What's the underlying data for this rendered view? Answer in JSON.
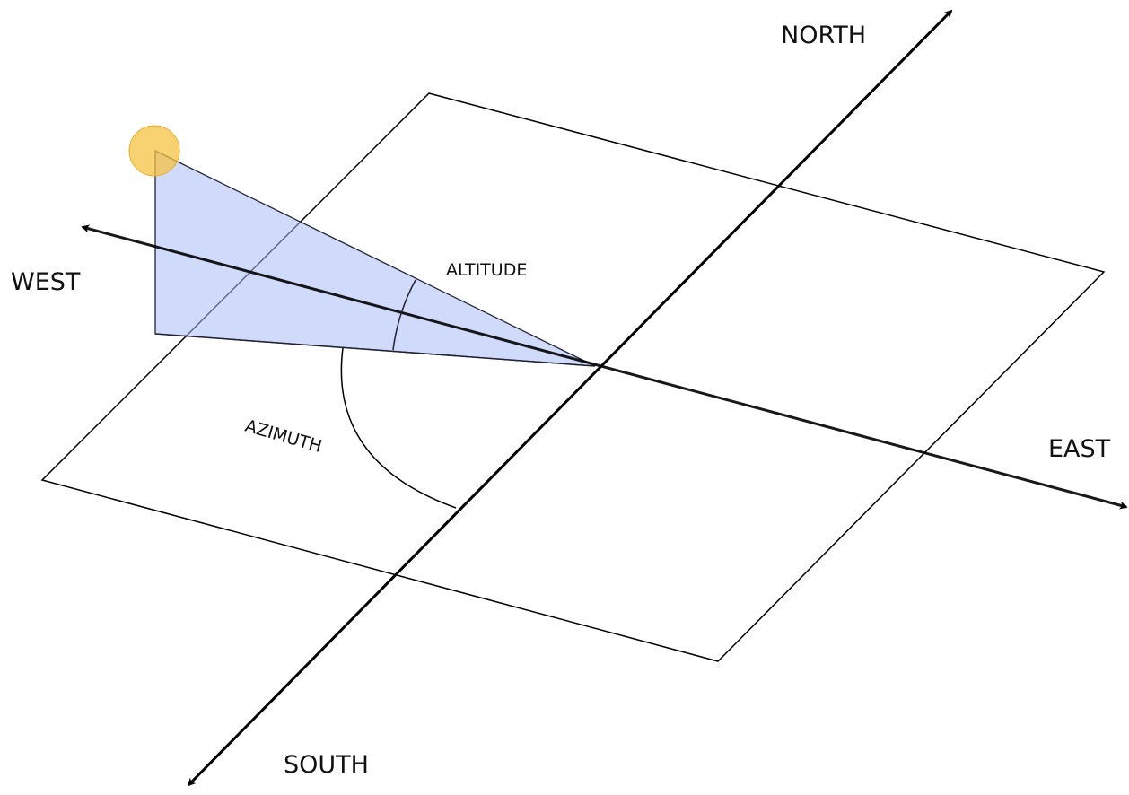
{
  "labels": {
    "north": "NORTH",
    "south": "SOUTH",
    "east": "EAST",
    "west": "WEST",
    "altitude": "ALTITUDE",
    "azimuth": "AZIMUTH"
  }
}
